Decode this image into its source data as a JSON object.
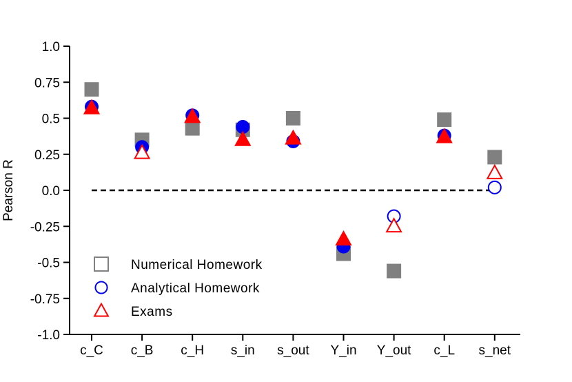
{
  "chart_data": {
    "type": "scatter",
    "title": "",
    "xlabel": "",
    "ylabel": "Pearson R",
    "ylim": [
      -1.0,
      1.0
    ],
    "yticks": [
      1.0,
      0.75,
      0.5,
      0.25,
      0.0,
      -0.25,
      -0.5,
      -0.75,
      -1.0
    ],
    "ytick_labels": [
      "1.0",
      "0.75",
      "0.5",
      "0.25",
      "0.0",
      "-0.25",
      "-0.5",
      "-0.75",
      "-1.0"
    ],
    "categories": [
      "c_C",
      "c_B",
      "c_H",
      "s_in",
      "s_out",
      "Y_in",
      "Y_out",
      "c_L",
      "s_net"
    ],
    "reference_line": {
      "y": 0.0,
      "style": "dashed"
    },
    "grid": false,
    "legend_position": "bottom-left",
    "series": [
      {
        "name": "Numerical Homework",
        "marker": "square",
        "color": "#808080",
        "values": [
          0.7,
          0.35,
          0.43,
          0.42,
          0.5,
          -0.44,
          -0.56,
          0.49,
          0.23
        ],
        "filled": [
          true,
          true,
          true,
          true,
          true,
          true,
          true,
          true,
          true
        ]
      },
      {
        "name": "Analytical Homework",
        "marker": "circle",
        "color": "#0000ee",
        "values": [
          0.58,
          0.3,
          0.52,
          0.44,
          0.34,
          -0.39,
          -0.18,
          0.38,
          0.02
        ],
        "filled": [
          true,
          true,
          true,
          true,
          true,
          true,
          false,
          true,
          false
        ]
      },
      {
        "name": "Exams",
        "marker": "triangle",
        "color": "#ff0000",
        "values": [
          0.57,
          0.26,
          0.51,
          0.35,
          0.36,
          -0.34,
          -0.25,
          0.37,
          0.12
        ],
        "filled": [
          true,
          false,
          true,
          true,
          true,
          true,
          false,
          true,
          false
        ]
      }
    ]
  }
}
